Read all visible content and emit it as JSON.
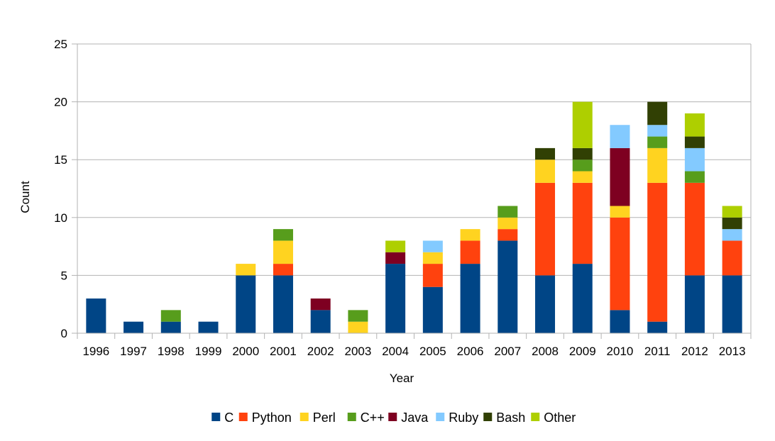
{
  "chart_data": {
    "type": "bar",
    "stacked": true,
    "title": "",
    "xlabel": "Year",
    "ylabel": "Count",
    "ylim": [
      0,
      25
    ],
    "yticks": [
      0,
      5,
      10,
      15,
      20,
      25
    ],
    "grid": true,
    "legend_position": "bottom",
    "categories": [
      "1996",
      "1997",
      "1998",
      "1999",
      "2000",
      "2001",
      "2002",
      "2003",
      "2004",
      "2005",
      "2006",
      "2007",
      "2008",
      "2009",
      "2010",
      "2011",
      "2012",
      "2013"
    ],
    "series": [
      {
        "name": "C",
        "color": "#004586",
        "values": [
          3,
          1,
          1,
          1,
          5,
          5,
          2,
          0,
          6,
          4,
          6,
          8,
          5,
          6,
          2,
          1,
          5,
          5
        ]
      },
      {
        "name": "Python",
        "color": "#ff420e",
        "values": [
          0,
          0,
          0,
          0,
          0,
          1,
          0,
          0,
          0,
          2,
          2,
          1,
          8,
          7,
          8,
          12,
          8,
          3
        ]
      },
      {
        "name": "Perl",
        "color": "#ffd320",
        "values": [
          0,
          0,
          0,
          0,
          1,
          2,
          0,
          1,
          0,
          1,
          1,
          1,
          2,
          1,
          1,
          3,
          0,
          0
        ]
      },
      {
        "name": "C++",
        "color": "#579d1c",
        "values": [
          0,
          0,
          1,
          0,
          0,
          1,
          0,
          1,
          0,
          0,
          0,
          1,
          0,
          1,
          0,
          1,
          1,
          0
        ]
      },
      {
        "name": "Java",
        "color": "#7e0021",
        "values": [
          0,
          0,
          0,
          0,
          0,
          0,
          1,
          0,
          1,
          0,
          0,
          0,
          0,
          0,
          5,
          0,
          0,
          0
        ]
      },
      {
        "name": "Ruby",
        "color": "#83caff",
        "values": [
          0,
          0,
          0,
          0,
          0,
          0,
          0,
          0,
          0,
          1,
          0,
          0,
          0,
          0,
          2,
          1,
          2,
          1
        ]
      },
      {
        "name": "Bash",
        "color": "#314004",
        "values": [
          0,
          0,
          0,
          0,
          0,
          0,
          0,
          0,
          0,
          0,
          0,
          0,
          1,
          1,
          0,
          2,
          1,
          1
        ]
      },
      {
        "name": "Other",
        "color": "#aecf00",
        "values": [
          0,
          0,
          0,
          0,
          0,
          0,
          0,
          0,
          1,
          0,
          0,
          0,
          0,
          4,
          0,
          0,
          2,
          1
        ]
      }
    ]
  }
}
